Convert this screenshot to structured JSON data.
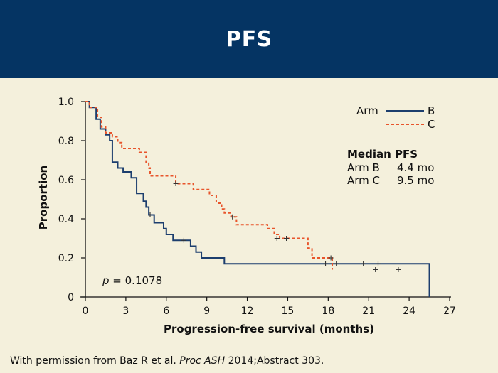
{
  "header": {
    "title": "PFS"
  },
  "footer": {
    "pre": "With permission from Baz R et al. ",
    "journal": "Proc ASH",
    "post": " 2014;Abstract 303."
  },
  "colors": {
    "band": "#053463",
    "background": "#f4f0dc",
    "arm_b": "#1c3e6e",
    "arm_c": "#e8552b"
  },
  "chart_data": {
    "type": "line",
    "xlabel": "Progression-free survival (months)",
    "ylabel": "Proportion",
    "xlim": [
      0,
      27
    ],
    "ylim": [
      0,
      1.0
    ],
    "xticks": [
      0,
      3,
      6,
      9,
      12,
      15,
      18,
      21,
      24,
      27
    ],
    "yticks": [
      0,
      0.2,
      0.4,
      0.6,
      0.8,
      1.0
    ],
    "ytick_labels": [
      "0",
      "0.2",
      "0.4",
      "0.6",
      "0.8",
      "1.0"
    ],
    "grid": false,
    "legend": {
      "title": "Arm",
      "placement": "top-right"
    },
    "annotations": {
      "p_label": "p",
      "p_value": " = 0.1078",
      "median_title": "Median PFS",
      "median_rows": [
        {
          "arm": "Arm B",
          "value": "4.4 mo"
        },
        {
          "arm": "Arm C",
          "value": "9.5 mo"
        }
      ]
    },
    "series": [
      {
        "name": "B",
        "color": "#1c3e6e",
        "dash": "solid",
        "steps": [
          [
            0,
            1.0
          ],
          [
            0.3,
            0.97
          ],
          [
            0.8,
            0.91
          ],
          [
            1.1,
            0.86
          ],
          [
            1.5,
            0.83
          ],
          [
            1.8,
            0.8
          ],
          [
            2.0,
            0.69
          ],
          [
            2.4,
            0.66
          ],
          [
            2.8,
            0.64
          ],
          [
            3.4,
            0.61
          ],
          [
            3.8,
            0.53
          ],
          [
            4.3,
            0.49
          ],
          [
            4.5,
            0.46
          ],
          [
            4.7,
            0.42
          ],
          [
            5.1,
            0.38
          ],
          [
            5.8,
            0.35
          ],
          [
            6.0,
            0.32
          ],
          [
            6.5,
            0.29
          ],
          [
            7.8,
            0.26
          ],
          [
            8.2,
            0.23
          ],
          [
            8.6,
            0.2
          ],
          [
            10.3,
            0.17
          ],
          [
            25.5,
            0.0
          ]
        ],
        "censored": [
          [
            4.8,
            0.42
          ],
          [
            7.3,
            0.29
          ],
          [
            17.8,
            0.17
          ],
          [
            18.6,
            0.17
          ],
          [
            20.6,
            0.17
          ],
          [
            21.7,
            0.17
          ]
        ]
      },
      {
        "name": "C",
        "color": "#e8552b",
        "dash": "dashed",
        "steps": [
          [
            0,
            1.0
          ],
          [
            0.3,
            0.97
          ],
          [
            0.9,
            0.92
          ],
          [
            1.2,
            0.87
          ],
          [
            1.5,
            0.84
          ],
          [
            2.0,
            0.82
          ],
          [
            2.4,
            0.79
          ],
          [
            2.7,
            0.76
          ],
          [
            4.0,
            0.74
          ],
          [
            4.5,
            0.69
          ],
          [
            4.7,
            0.66
          ],
          [
            4.8,
            0.62
          ],
          [
            6.7,
            0.58
          ],
          [
            8.0,
            0.55
          ],
          [
            9.2,
            0.52
          ],
          [
            9.7,
            0.48
          ],
          [
            10.1,
            0.45
          ],
          [
            10.3,
            0.43
          ],
          [
            10.8,
            0.41
          ],
          [
            11.2,
            0.37
          ],
          [
            13.5,
            0.35
          ],
          [
            14.0,
            0.32
          ],
          [
            14.4,
            0.3
          ],
          [
            16.5,
            0.25
          ],
          [
            16.8,
            0.2
          ],
          [
            18.3,
            0.14
          ]
        ],
        "censored": [
          [
            6.7,
            0.58
          ],
          [
            10.9,
            0.41
          ],
          [
            14.2,
            0.3
          ],
          [
            14.9,
            0.3
          ],
          [
            18.2,
            0.2
          ],
          [
            21.5,
            0.14
          ],
          [
            23.2,
            0.14
          ]
        ]
      }
    ]
  }
}
